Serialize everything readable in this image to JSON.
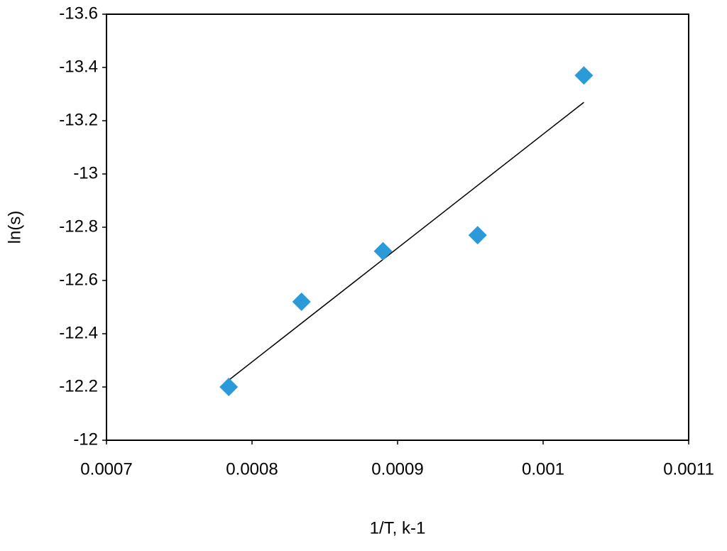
{
  "chart_data": {
    "type": "scatter",
    "x_label": "1/T, k-1",
    "y_label": "ln(s)",
    "x": [
      0.000784,
      0.000834,
      0.00089,
      0.000955,
      0.001028
    ],
    "values": [
      -12.2,
      -12.52,
      -12.71,
      -12.77,
      -13.37
    ],
    "color": "#2a9ad8",
    "marker": "diamond",
    "trendline": "linear",
    "xlim": [
      0.0007,
      0.0011
    ],
    "xticks": [
      0.0007,
      0.0008,
      0.0009,
      0.001,
      0.0011
    ],
    "ylim": [
      -12,
      -13.6
    ],
    "yticks": [
      -12,
      -12.2,
      -12.4,
      -12.6,
      -12.8,
      -13,
      -13.2,
      -13.4,
      -13.6
    ],
    "grid": false
  }
}
